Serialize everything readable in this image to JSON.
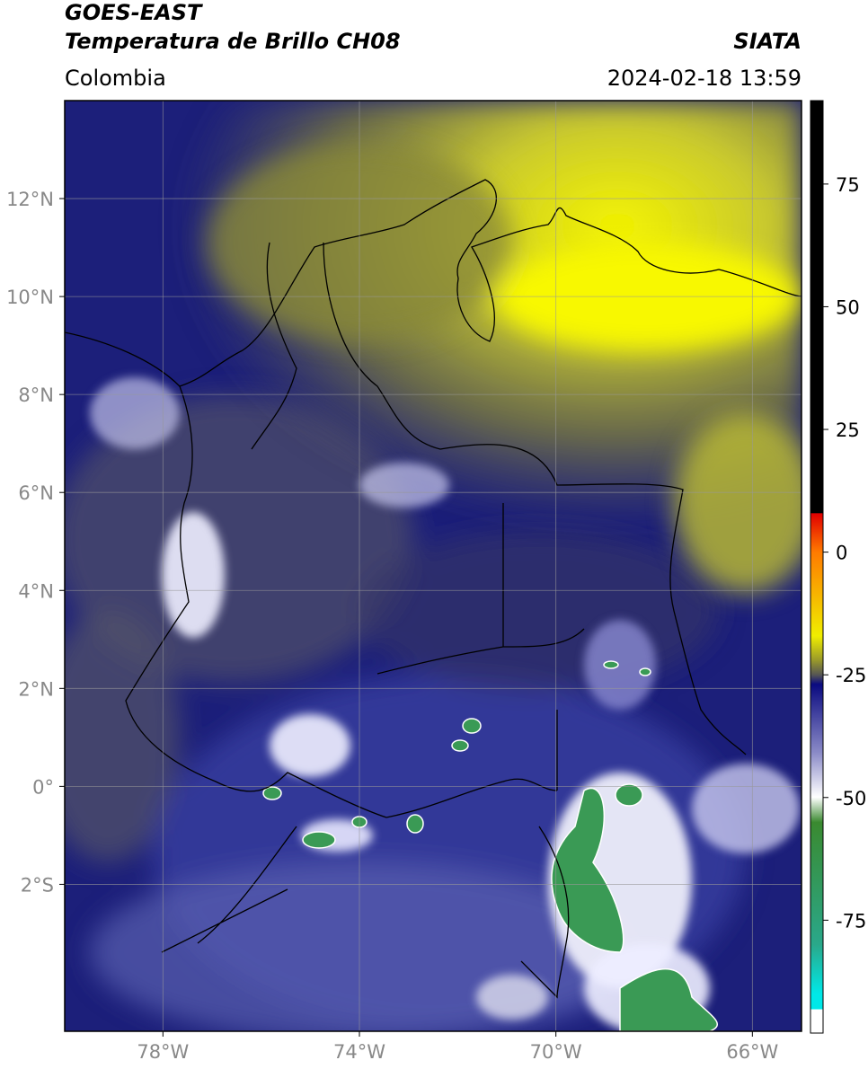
{
  "header": {
    "title": "GOES-EAST",
    "subtitle": "Temperatura de Brillo CH08",
    "source": "SIATA",
    "region": "Colombia",
    "datetime": "2024-02-18 13:59"
  },
  "map": {
    "xlim": [
      -80,
      -65
    ],
    "ylim": [
      -5,
      14
    ],
    "xticks": [
      {
        "value": -78,
        "label": "78°W"
      },
      {
        "value": -74,
        "label": "74°W"
      },
      {
        "value": -70,
        "label": "70°W"
      },
      {
        "value": -66,
        "label": "66°W"
      }
    ],
    "yticks": [
      {
        "value": 12,
        "label": "12°N"
      },
      {
        "value": 10,
        "label": "10°N"
      },
      {
        "value": 8,
        "label": "8°N"
      },
      {
        "value": 6,
        "label": "6°N"
      },
      {
        "value": 4,
        "label": "4°N"
      },
      {
        "value": 2,
        "label": "2°N"
      },
      {
        "value": 0,
        "label": "0°"
      },
      {
        "value": -2,
        "label": "2°S"
      }
    ]
  },
  "colorbar": {
    "lim": [
      -98,
      92
    ],
    "ticks": [
      75,
      50,
      25,
      0,
      -25,
      -50,
      -75
    ]
  }
}
